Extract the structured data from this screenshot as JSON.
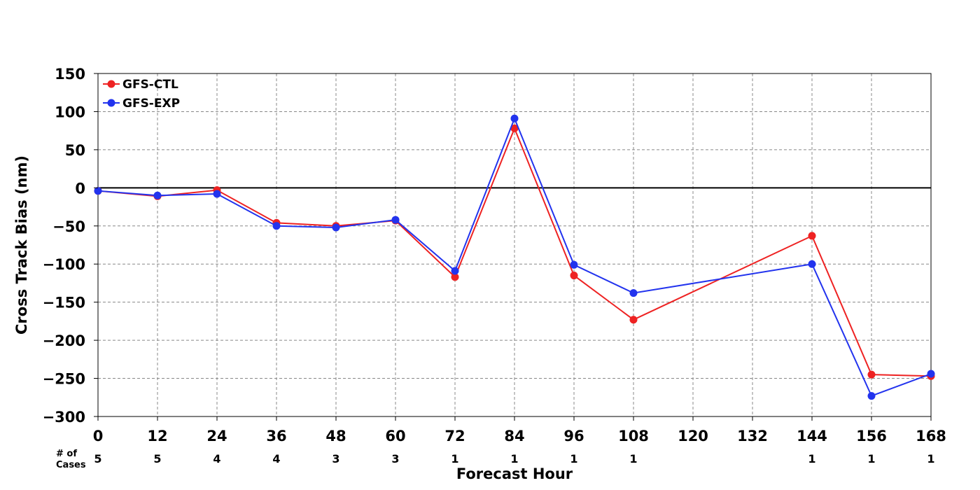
{
  "chart_data": {
    "type": "line",
    "title": "",
    "xlabel": "Forecast Hour",
    "ylabel": "Cross Track Bias (nm)",
    "xlim": [
      0,
      168
    ],
    "ylim": [
      -300,
      150
    ],
    "x_ticks": [
      0,
      12,
      24,
      36,
      48,
      60,
      72,
      84,
      96,
      108,
      120,
      132,
      144,
      156,
      168
    ],
    "x_tick_labels": [
      "0",
      "12",
      "24",
      "36",
      "48",
      "60",
      "72",
      "84",
      "96",
      "108",
      "120",
      "132",
      "144",
      "156",
      "168"
    ],
    "y_ticks": [
      150,
      100,
      50,
      0,
      -50,
      -100,
      -150,
      -200,
      -250,
      -300
    ],
    "y_tick_labels": [
      "150",
      "100",
      "50",
      "0",
      "−50",
      "−100",
      "−150",
      "−200",
      "−250",
      "−300"
    ],
    "grid": true,
    "zero_line": true,
    "legend_position": "top-left",
    "series": [
      {
        "name": "GFS-CTL",
        "color": "#ee2222",
        "x": [
          0,
          12,
          24,
          36,
          48,
          60,
          72,
          84,
          96,
          108,
          144,
          156,
          168
        ],
        "y": [
          -4,
          -11,
          -3,
          -46,
          -50,
          -43,
          -117,
          78,
          -115,
          -173,
          -63,
          -245,
          -247
        ]
      },
      {
        "name": "GFS-EXP",
        "color": "#2233ee",
        "x": [
          0,
          12,
          24,
          36,
          48,
          60,
          72,
          84,
          96,
          108,
          144,
          156,
          168
        ],
        "y": [
          -4,
          -10,
          -8,
          -50,
          -52,
          -42,
          -109,
          91,
          -101,
          -138,
          -100,
          -273,
          -244
        ]
      }
    ],
    "cases": {
      "label_line1": "# of",
      "label_line2": "Cases",
      "x": [
        0,
        12,
        24,
        36,
        48,
        60,
        72,
        84,
        96,
        108,
        144,
        156,
        168
      ],
      "counts": [
        "5",
        "5",
        "4",
        "4",
        "3",
        "3",
        "1",
        "1",
        "1",
        "1",
        "1",
        "1",
        "1"
      ]
    }
  }
}
